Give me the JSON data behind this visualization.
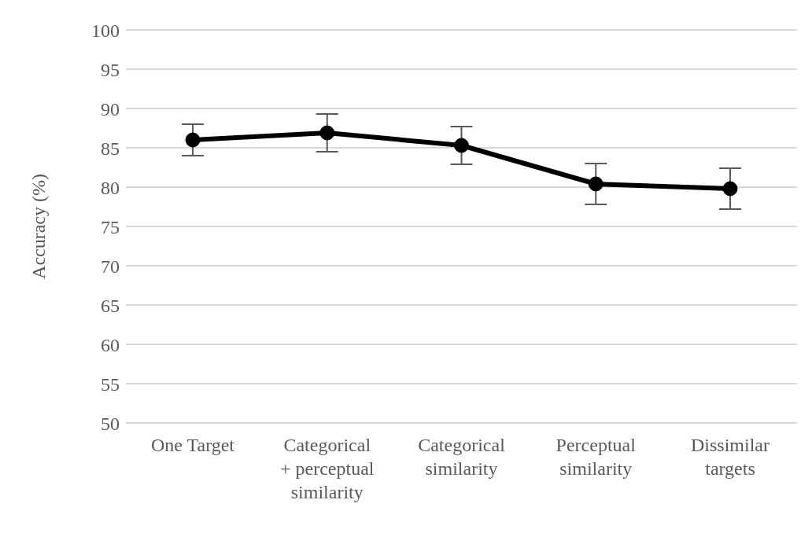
{
  "chart_data": {
    "type": "line",
    "ylabel": "Accuracy (%)",
    "categories": [
      "One Target",
      "Categorical + perceptual similarity",
      "Categorical similarity",
      "Perceptual similarity",
      "Dissimilar targets"
    ],
    "series": [
      {
        "color": "#000000",
        "values": [
          86.0,
          86.9,
          85.3,
          80.4,
          79.8
        ],
        "errors": [
          2.0,
          2.4,
          2.4,
          2.6,
          2.6
        ]
      }
    ],
    "ylim": [
      50,
      100
    ],
    "yticks": [
      50,
      55,
      60,
      65,
      70,
      75,
      80,
      85,
      90,
      95,
      100
    ],
    "grid": "y",
    "marker": "circle",
    "line_style": "solid",
    "legend": false
  }
}
